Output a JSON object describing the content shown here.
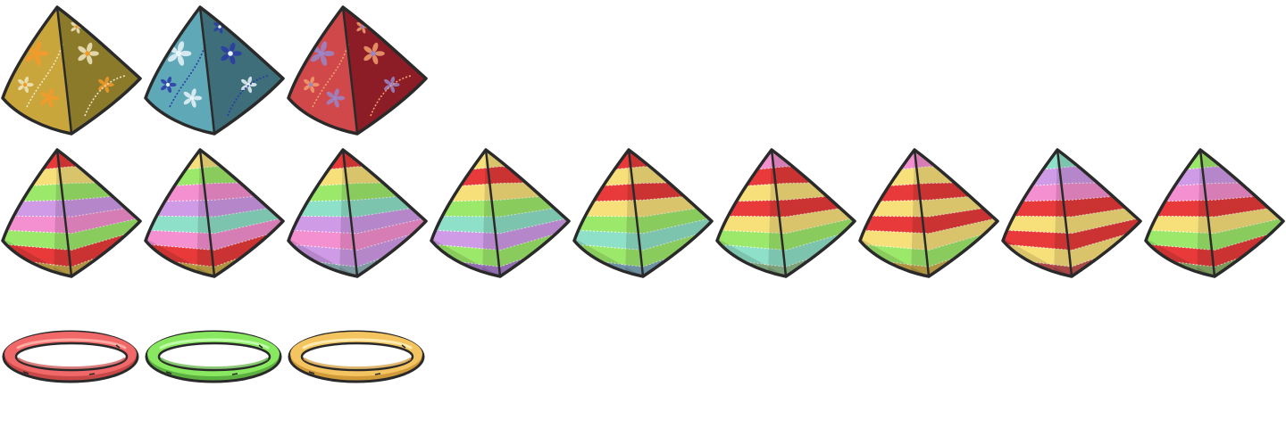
{
  "sheet": {
    "batik_bags": [
      {
        "pattern": "floral-batik",
        "base_color": "#c9a63c",
        "shade_color": "#8a7a2a",
        "motif_color": "#f0e7c0",
        "accent_color": "#f39a2a"
      },
      {
        "pattern": "floral-batik",
        "base_color": "#5fa8b8",
        "shade_color": "#3e6e7a",
        "motif_color": "#2a3aa8",
        "accent_color": "#e8f4f8"
      },
      {
        "pattern": "floral-batik",
        "base_color": "#d0484a",
        "shade_color": "#8c1c26",
        "motif_color": "#f0a070",
        "accent_color": "#9a86c8"
      }
    ],
    "striped_bags": [
      {
        "pattern": "rainbow-stripes",
        "stripes": [
          "#e83a3a",
          "#f7e07a",
          "#9ce86a",
          "#cf9ae6",
          "#f48fd0",
          "#9ce86a",
          "#e83a3a",
          "#c9a94a"
        ]
      },
      {
        "pattern": "rainbow-stripes",
        "stripes": [
          "#f7e07a",
          "#9ce86a",
          "#f48fd0",
          "#cf9ae6",
          "#8fe0c8",
          "#f48fd0",
          "#e83a3a",
          "#c9a94a"
        ]
      },
      {
        "pattern": "rainbow-stripes",
        "stripes": [
          "#e83a3a",
          "#f7e07a",
          "#9ce86a",
          "#8fe0c8",
          "#cf9ae6",
          "#f48fd0",
          "#cf9ae6",
          "#8fb0b8"
        ]
      },
      {
        "pattern": "rainbow-stripes",
        "stripes": [
          "#f7e07a",
          "#e83a3a",
          "#f7e07a",
          "#9ce86a",
          "#8fe0c8",
          "#cf9ae6",
          "#9ce86a",
          "#a67cc8"
        ]
      },
      {
        "pattern": "rainbow-stripes",
        "stripes": [
          "#e83a3a",
          "#f7e07a",
          "#e83a3a",
          "#f7e07a",
          "#9ce86a",
          "#8fe0c8",
          "#9ce86a",
          "#7ea6b8"
        ]
      },
      {
        "pattern": "rainbow-stripes",
        "stripes": [
          "#f48fd0",
          "#e83a3a",
          "#f7e07a",
          "#e83a3a",
          "#f7e07a",
          "#9ce86a",
          "#8fe0c8",
          "#8fb88a"
        ]
      },
      {
        "pattern": "rainbow-stripes",
        "stripes": [
          "#f48fd0",
          "#f7e07a",
          "#e83a3a",
          "#f7e07a",
          "#e83a3a",
          "#f7e07a",
          "#9ce86a",
          "#c9a94a"
        ]
      },
      {
        "pattern": "rainbow-stripes",
        "stripes": [
          "#8fe0c8",
          "#cf9ae6",
          "#f48fd0",
          "#e83a3a",
          "#f7e07a",
          "#e83a3a",
          "#f7e07a",
          "#c05050"
        ]
      },
      {
        "pattern": "rainbow-stripes",
        "stripes": [
          "#9ce86a",
          "#cf9ae6",
          "#f48fd0",
          "#e83a3a",
          "#f7e07a",
          "#9ce86a",
          "#e83a3a",
          "#8fb06a"
        ]
      }
    ],
    "rings": [
      {
        "color": "#f06868",
        "shade": "#c84848",
        "highlight": "#ffb0a8"
      },
      {
        "color": "#88e860",
        "shade": "#5cb040",
        "highlight": "#c8ffb0"
      },
      {
        "color": "#f4c460",
        "shade": "#d09a38",
        "highlight": "#fff0b8"
      }
    ]
  }
}
